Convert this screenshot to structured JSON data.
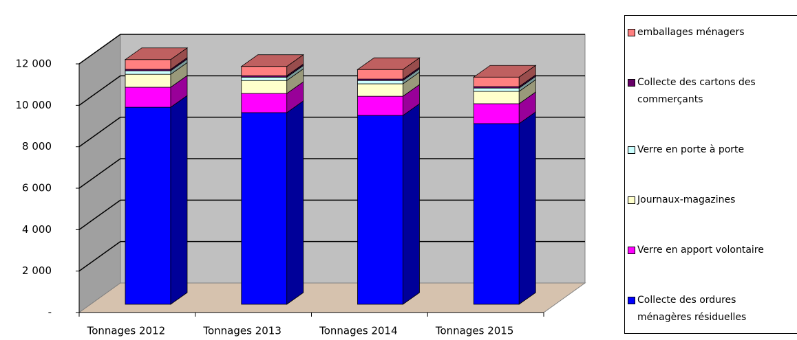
{
  "chart_data": {
    "type": "bar3d_stacked",
    "categories": [
      "Tonnages 2012",
      "Tonnages 2013",
      "Tonnages 2014",
      "Tonnages 2015"
    ],
    "series": [
      {
        "name": "Collecte des ordures ménagères résiduelles",
        "color": "#0000ff",
        "values": [
          9510,
          9250,
          9115,
          8720
        ]
      },
      {
        "name": "Verre en apport volontaire",
        "color": "#ff00ff",
        "values": [
          965,
          925,
          925,
          960
        ]
      },
      {
        "name": "Journaux-magazines",
        "color": "#ffffcc",
        "values": [
          625,
          625,
          600,
          595
        ]
      },
      {
        "name": "Verre en porte à porte",
        "color": "#ccffff",
        "values": [
          170,
          160,
          160,
          160
        ]
      },
      {
        "name": "Collecte des cartons des commerçants",
        "color": "#660066",
        "values": [
          70,
          70,
          70,
          70
        ]
      },
      {
        "name": "emballages ménagers",
        "color": "#ff8080",
        "values": [
          470,
          450,
          460,
          460
        ]
      }
    ],
    "ylim": [
      0,
      12000
    ],
    "yticks": [
      {
        "value": 0,
        "label": "-"
      },
      {
        "value": 2000,
        "label": "2 000"
      },
      {
        "value": 4000,
        "label": "4 000"
      },
      {
        "value": 6000,
        "label": "6 000"
      },
      {
        "value": 8000,
        "label": "8 000"
      },
      {
        "value": 10000,
        "label": "10 000"
      },
      {
        "value": 12000,
        "label": "12 000"
      }
    ],
    "grid": true,
    "legend": "right"
  }
}
